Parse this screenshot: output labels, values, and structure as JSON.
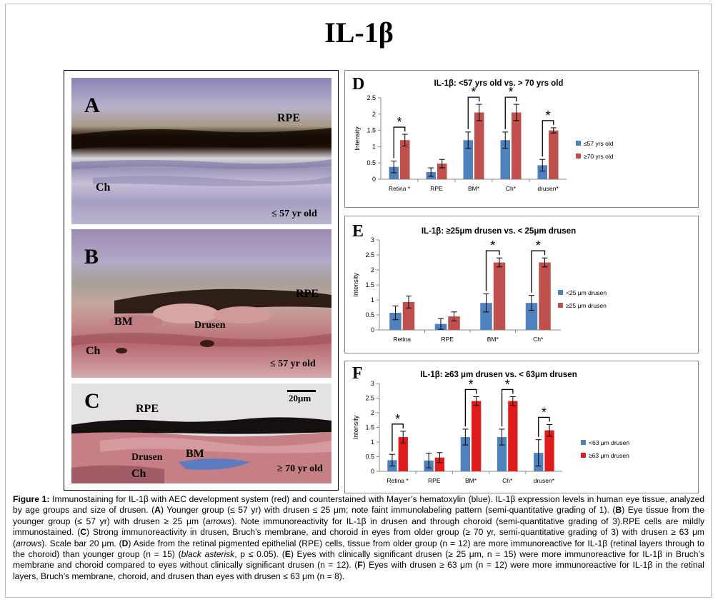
{
  "title": "IL-1β",
  "micrographs": [
    {
      "letter": "A",
      "labels": [
        "RPE",
        "Ch"
      ],
      "age": "≤ 57 yr old"
    },
    {
      "letter": "B",
      "labels": [
        "RPE",
        "BM",
        "Drusen",
        "Ch"
      ],
      "age": "≤ 57 yr old"
    },
    {
      "letter": "C",
      "labels": [
        "RPE",
        "Drusen",
        "BM",
        "Ch"
      ],
      "age": "≥ 70 yr old",
      "scale_label": "20μm"
    }
  ],
  "colors": {
    "blue": "#4f81bd",
    "red": "#c0504d",
    "red_bright": "#e01b1b"
  },
  "chart_data": [
    {
      "type": "bar",
      "panel": "D",
      "title": "IL-1β: <57 yrs old vs. > 70 yrs old",
      "ylabel": "Intensity",
      "ylim": [
        0,
        2.5
      ],
      "yticks": [
        "0",
        "0.5",
        "1",
        "1.5",
        "2",
        "2.5"
      ],
      "categories": [
        "Retina *",
        "RPE",
        "BM*",
        "Ch*",
        "drusen*"
      ],
      "series": [
        {
          "name": "≤57 yrs old",
          "color": "#4f81bd",
          "values": [
            0.38,
            0.22,
            1.2,
            1.2,
            0.43
          ],
          "errors": [
            0.18,
            0.13,
            0.25,
            0.25,
            0.18
          ]
        },
        {
          "name": "≥70 yrs old",
          "color": "#c0504d",
          "values": [
            1.2,
            0.48,
            2.05,
            2.05,
            1.5
          ],
          "errors": [
            0.18,
            0.13,
            0.25,
            0.25,
            0.08
          ]
        }
      ],
      "significant": [
        0,
        2,
        3,
        4
      ],
      "annotation": "*",
      "legend_position": "right"
    },
    {
      "type": "bar",
      "panel": "E",
      "title": "IL-1β: ≥25μm drusen vs. < 25μm drusen",
      "ylabel": "Intensity",
      "ylim": [
        0,
        3
      ],
      "yticks": [
        "0",
        "0.5",
        "1",
        "1.5",
        "2",
        "2.5",
        "3"
      ],
      "categories": [
        "Retina",
        "RPE",
        "BM*",
        "Ch*"
      ],
      "series": [
        {
          "name": "<25 μm drusen",
          "color": "#4f81bd",
          "values": [
            0.57,
            0.2,
            0.9,
            0.9
          ],
          "errors": [
            0.23,
            0.18,
            0.3,
            0.25
          ]
        },
        {
          "name": "≥25 μm drusen",
          "color": "#c0504d",
          "values": [
            0.93,
            0.45,
            2.25,
            2.25
          ],
          "errors": [
            0.2,
            0.15,
            0.15,
            0.15
          ]
        }
      ],
      "significant": [
        2,
        3
      ],
      "annotation": "*",
      "legend_position": "right"
    },
    {
      "type": "bar",
      "panel": "F",
      "title": "IL-1β: ≥63 μm drusen vs. < 63μm drusen",
      "ylabel": "Intensity",
      "ylim": [
        0,
        3
      ],
      "yticks": [
        "0",
        "0.5",
        "1",
        "1.5",
        "2",
        "2.5",
        "3"
      ],
      "categories": [
        "Retina *",
        "RPE",
        "BM*",
        "Ch*",
        "drusen*"
      ],
      "series": [
        {
          "name": "<63 μm drusen",
          "color": "#4f81bd",
          "values": [
            0.38,
            0.37,
            1.17,
            1.17,
            0.63
          ],
          "errors": [
            0.2,
            0.25,
            0.27,
            0.27,
            0.45
          ]
        },
        {
          "name": "≥63 μm drusen",
          "color": "#e01b1b",
          "values": [
            1.17,
            0.47,
            2.4,
            2.4,
            1.4
          ],
          "errors": [
            0.2,
            0.17,
            0.15,
            0.15,
            0.2
          ]
        }
      ],
      "significant": [
        0,
        2,
        3,
        4
      ],
      "annotation": "*",
      "legend_position": "right"
    }
  ],
  "caption": [
    {
      "text": "Figure 1:",
      "bold": true
    },
    {
      "text": " Immunostaining for IL-1β with AEC development system (red) and counterstained with Mayer’s hematoxylin (blue). IL-1β expression levels in human eye tissue, analyzed by age groups and size of drusen. ("
    },
    {
      "text": "A",
      "bold": true
    },
    {
      "text": ") Younger group (≤ 57 yr) with drusen ≤ 25 μm; note faint immunolabeling pattern (semi-quantitative grading of 1). ("
    },
    {
      "text": "B",
      "bold": true
    },
    {
      "text": ") Eye tissue from the younger group (≤ 57 yr) with drusen ≥ 25 μm ("
    },
    {
      "text": "arrows",
      "italic": true
    },
    {
      "text": "). Note immunoreactivity for IL-1β in drusen and through choroid (semi-quantitative grading of 3).RPE cells are mildly immunostained. ("
    },
    {
      "text": "C",
      "bold": true
    },
    {
      "text": ") Strong immunoreactivity in drusen, Bruch’s membrane, and choroid in eyes from older group (≥ 70 yr, semi-quantitative grading of 3) with drusen ≥ 63 μm ("
    },
    {
      "text": "arrows",
      "italic": true
    },
    {
      "text": "). Scale bar 20 μm. ("
    },
    {
      "text": "D",
      "bold": true
    },
    {
      "text": ") Aside from the retinal pigmented epithelial (RPE) cells, tissue from older group (n = 12) are more immunoreactive for IL-1β (retinal layers through to the choroid) than younger group (n = 15) ("
    },
    {
      "text": "black asterisk",
      "italic": true
    },
    {
      "text": ", p ≤ 0.05). ("
    },
    {
      "text": "E",
      "bold": true
    },
    {
      "text": ") Eyes with clinically significant drusen (≥ 25 μm, n = 15) were more immunoreactive for IL-1β in Bruch’s membrane and choroid compared to eyes without clinically significant drusen (n = 12). ("
    },
    {
      "text": "F",
      "bold": true
    },
    {
      "text": ") Eyes with drusen ≥ 63 μm (n = 12) were more immunoreactive for IL-1β in the retinal layers, Bruch’s membrane, choroid, and drusen than eyes with drusen ≤ 63 μm (n = 8)."
    }
  ]
}
